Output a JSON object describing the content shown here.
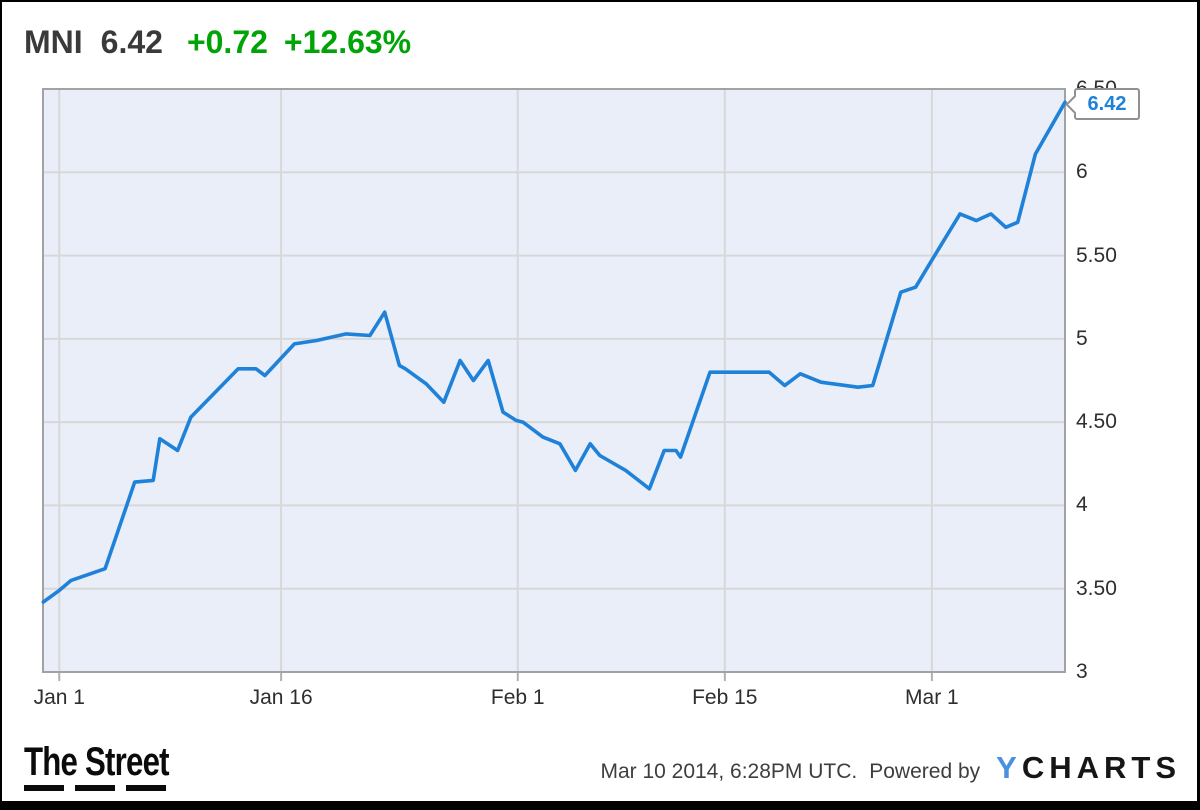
{
  "header": {
    "symbol": "MNI",
    "price": "6.42",
    "change": "+0.72",
    "change_percent": "+12.63%",
    "change_color": "#00a407",
    "text_color": "#3a3a3a"
  },
  "chart_data": {
    "type": "line",
    "symbol": "MNI",
    "x_axis": {
      "unit": "calendar days from Jan 1 2014",
      "range": [
        -1.1,
        68
      ],
      "ticks": [
        {
          "day": 0,
          "label": "Jan 1"
        },
        {
          "day": 15,
          "label": "Jan 16"
        },
        {
          "day": 31,
          "label": "Feb 1"
        },
        {
          "day": 45,
          "label": "Feb 15"
        },
        {
          "day": 59,
          "label": "Mar 1"
        }
      ]
    },
    "y_axis": {
      "range": [
        3,
        6.5
      ],
      "ticks": [
        {
          "value": 6.5,
          "label": "6.50"
        },
        {
          "value": 6,
          "label": "6"
        },
        {
          "value": 5.5,
          "label": "5.50"
        },
        {
          "value": 5,
          "label": "5"
        },
        {
          "value": 4.5,
          "label": "4.50"
        },
        {
          "value": 4,
          "label": "4"
        },
        {
          "value": 3.5,
          "label": "3.50"
        },
        {
          "value": 3,
          "label": "3"
        }
      ]
    },
    "series": [
      {
        "name": "MNI price",
        "color": "#1f82d8",
        "points": [
          [
            -1.08,
            3.42
          ],
          [
            0,
            3.49
          ],
          [
            0.8,
            3.55
          ],
          [
            3.1,
            3.62
          ],
          [
            5.1,
            4.14
          ],
          [
            6.35,
            4.15
          ],
          [
            6.8,
            4.4
          ],
          [
            8,
            4.33
          ],
          [
            8.9,
            4.53
          ],
          [
            12.1,
            4.82
          ],
          [
            13.3,
            4.82
          ],
          [
            13.9,
            4.78
          ],
          [
            15.9,
            4.97
          ],
          [
            17.4,
            4.99
          ],
          [
            19.4,
            5.03
          ],
          [
            21,
            5.02
          ],
          [
            22,
            5.16
          ],
          [
            23,
            4.84
          ],
          [
            23.4,
            4.82
          ],
          [
            24.8,
            4.73
          ],
          [
            26,
            4.62
          ],
          [
            27.1,
            4.87
          ],
          [
            28,
            4.75
          ],
          [
            29,
            4.87
          ],
          [
            30,
            4.56
          ],
          [
            30.9,
            4.51
          ],
          [
            31.35,
            4.5
          ],
          [
            32.7,
            4.41
          ],
          [
            33.85,
            4.37
          ],
          [
            34.9,
            4.21
          ],
          [
            35.9,
            4.37
          ],
          [
            36.55,
            4.3
          ],
          [
            38.3,
            4.21
          ],
          [
            39.9,
            4.1
          ],
          [
            40.9,
            4.33
          ],
          [
            41.7,
            4.33
          ],
          [
            42,
            4.29
          ],
          [
            44,
            4.8
          ],
          [
            48,
            4.8
          ],
          [
            49.05,
            4.72
          ],
          [
            50.1,
            4.79
          ],
          [
            51.5,
            4.74
          ],
          [
            54,
            4.71
          ],
          [
            55,
            4.72
          ],
          [
            56.9,
            5.28
          ],
          [
            57.9,
            5.31
          ],
          [
            59.05,
            5.48
          ],
          [
            60.9,
            5.75
          ],
          [
            62,
            5.71
          ],
          [
            63,
            5.75
          ],
          [
            64,
            5.67
          ],
          [
            64.8,
            5.7
          ],
          [
            66,
            6.11
          ],
          [
            68,
            6.42
          ]
        ]
      }
    ],
    "last_point_label": "6.42",
    "style": {
      "plot_bg": "#e9eef9",
      "grid_color": "#d8d8d8",
      "border_color": "#a2a2a2",
      "tick_color": "#b0b0b0",
      "grid": true,
      "legend": "none"
    }
  },
  "footer": {
    "logo_text": "The Street",
    "timestamp": "Mar 10 2014, 6:28PM UTC.",
    "powered_by": "Powered by",
    "ycharts_y": "Y",
    "ycharts_rest": "CHARTS",
    "ycharts_y_color": "#4a90e2"
  }
}
